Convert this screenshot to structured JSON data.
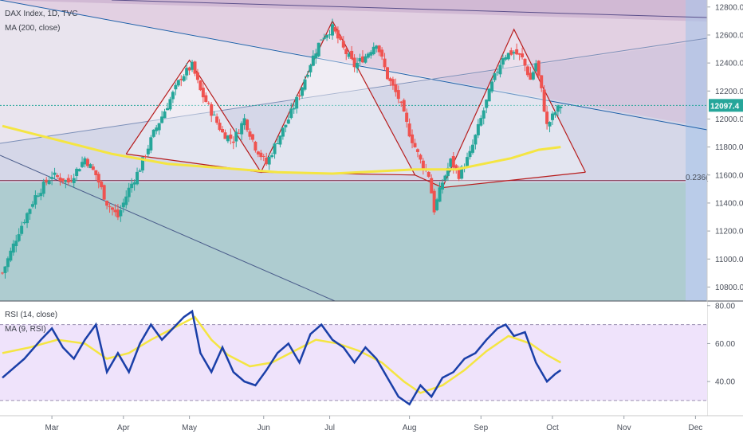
{
  "chart_data": [
    {
      "type": "candlestick",
      "title": "DAX Index, 1D, TVC",
      "indicator_label": "MA (200, close)",
      "x_ticks": [
        "Mar",
        "Apr",
        "May",
        "Jun",
        "Jul",
        "Aug",
        "Sep",
        "Oct",
        "Nov",
        "Dec"
      ],
      "y_ticks": [
        "12800.00",
        "12600.00",
        "12400.00",
        "12200.00",
        "12000.00",
        "11800.00",
        "11600.00",
        "11400.00",
        "11200.00",
        "11000.00",
        "10800.00"
      ],
      "ylim": [
        10700,
        12850
      ],
      "last_price": "12097.4",
      "fib_label": "0.236(",
      "fib_level": 11560,
      "colors": {
        "up": "#26a69a",
        "down": "#ef5350",
        "ma": "#f4e542",
        "pattern": "#b71c1c",
        "trendline": "#1e5fa8",
        "last_price": "#26a69a"
      },
      "price_path": [
        [
          0,
          10900
        ],
        [
          6,
          11200
        ],
        [
          12,
          11450
        ],
        [
          18,
          11600
        ],
        [
          24,
          11550
        ],
        [
          30,
          11720
        ],
        [
          34,
          11600
        ],
        [
          38,
          11400
        ],
        [
          42,
          11300
        ],
        [
          46,
          11500
        ],
        [
          50,
          11650
        ],
        [
          55,
          11900
        ],
        [
          60,
          12100
        ],
        [
          65,
          12300
        ],
        [
          69,
          12380
        ],
        [
          72,
          12200
        ],
        [
          76,
          12050
        ],
        [
          80,
          11900
        ],
        [
          84,
          11850
        ],
        [
          88,
          12000
        ],
        [
          92,
          11800
        ],
        [
          96,
          11680
        ],
        [
          100,
          11850
        ],
        [
          104,
          12000
        ],
        [
          108,
          12180
        ],
        [
          112,
          12400
        ],
        [
          116,
          12580
        ],
        [
          120,
          12650
        ],
        [
          124,
          12500
        ],
        [
          128,
          12380
        ],
        [
          132,
          12450
        ],
        [
          136,
          12550
        ],
        [
          140,
          12300
        ],
        [
          144,
          12150
        ],
        [
          148,
          11900
        ],
        [
          152,
          11700
        ],
        [
          155,
          11600
        ],
        [
          157,
          11350
        ],
        [
          160,
          11550
        ],
        [
          163,
          11700
        ],
        [
          166,
          11600
        ],
        [
          170,
          11750
        ],
        [
          174,
          12000
        ],
        [
          178,
          12250
        ],
        [
          182,
          12450
        ],
        [
          186,
          12480
        ],
        [
          189,
          12430
        ],
        [
          192,
          12280
        ],
        [
          194,
          12400
        ],
        [
          196,
          12200
        ],
        [
          198,
          11950
        ],
        [
          201,
          12050
        ],
        [
          203,
          12097
        ]
      ],
      "ma200": [
        [
          0,
          11950
        ],
        [
          20,
          11850
        ],
        [
          40,
          11750
        ],
        [
          60,
          11680
        ],
        [
          80,
          11650
        ],
        [
          100,
          11620
        ],
        [
          120,
          11610
        ],
        [
          140,
          11630
        ],
        [
          150,
          11640
        ],
        [
          165,
          11640
        ],
        [
          175,
          11680
        ],
        [
          185,
          11720
        ],
        [
          195,
          11780
        ],
        [
          203,
          11800
        ]
      ],
      "pattern_lines": [
        [
          [
            45,
            11750
          ],
          [
            68,
            12420
          ],
          [
            94,
            11620
          ],
          [
            120,
            12700
          ],
          [
            150,
            11600
          ],
          [
            160,
            11510
          ],
          [
            186,
            12640
          ],
          [
            212,
            11620
          ]
        ],
        [
          [
            45,
            11750
          ],
          [
            94,
            11620
          ],
          [
            150,
            11600
          ]
        ],
        [
          [
            160,
            11510
          ],
          [
            212,
            11620
          ]
        ]
      ]
    },
    {
      "type": "line",
      "title": "RSI (14, close)",
      "indicator_label": "MA (9, RSI)",
      "y_ticks": [
        "80.00",
        "60.00",
        "40.00"
      ],
      "ylim": [
        22,
        82
      ],
      "bands": [
        70,
        30
      ],
      "colors": {
        "rsi": "#1a3fa8",
        "ma": "#f4e542",
        "band_fill": "#efe3fb"
      },
      "rsi": [
        [
          0,
          42
        ],
        [
          8,
          52
        ],
        [
          14,
          62
        ],
        [
          18,
          68
        ],
        [
          22,
          58
        ],
        [
          26,
          52
        ],
        [
          30,
          62
        ],
        [
          34,
          70
        ],
        [
          38,
          45
        ],
        [
          42,
          55
        ],
        [
          46,
          45
        ],
        [
          50,
          60
        ],
        [
          54,
          70
        ],
        [
          58,
          62
        ],
        [
          62,
          68
        ],
        [
          66,
          74
        ],
        [
          69,
          77
        ],
        [
          72,
          55
        ],
        [
          76,
          45
        ],
        [
          80,
          58
        ],
        [
          84,
          45
        ],
        [
          88,
          40
        ],
        [
          92,
          38
        ],
        [
          96,
          46
        ],
        [
          100,
          55
        ],
        [
          104,
          60
        ],
        [
          108,
          50
        ],
        [
          112,
          65
        ],
        [
          116,
          70
        ],
        [
          120,
          62
        ],
        [
          124,
          58
        ],
        [
          128,
          50
        ],
        [
          132,
          58
        ],
        [
          136,
          52
        ],
        [
          140,
          42
        ],
        [
          144,
          32
        ],
        [
          148,
          28
        ],
        [
          152,
          38
        ],
        [
          156,
          32
        ],
        [
          160,
          42
        ],
        [
          164,
          45
        ],
        [
          168,
          52
        ],
        [
          172,
          55
        ],
        [
          176,
          62
        ],
        [
          180,
          68
        ],
        [
          183,
          70
        ],
        [
          186,
          64
        ],
        [
          190,
          66
        ],
        [
          194,
          50
        ],
        [
          198,
          40
        ],
        [
          201,
          44
        ],
        [
          203,
          46
        ]
      ],
      "rsi_ma": [
        [
          0,
          55
        ],
        [
          10,
          58
        ],
        [
          20,
          62
        ],
        [
          30,
          60
        ],
        [
          38,
          52
        ],
        [
          46,
          55
        ],
        [
          54,
          62
        ],
        [
          62,
          68
        ],
        [
          70,
          74
        ],
        [
          76,
          62
        ],
        [
          82,
          54
        ],
        [
          90,
          48
        ],
        [
          98,
          50
        ],
        [
          106,
          56
        ],
        [
          114,
          62
        ],
        [
          122,
          60
        ],
        [
          130,
          56
        ],
        [
          138,
          50
        ],
        [
          146,
          40
        ],
        [
          152,
          34
        ],
        [
          160,
          38
        ],
        [
          168,
          46
        ],
        [
          176,
          56
        ],
        [
          184,
          64
        ],
        [
          192,
          60
        ],
        [
          198,
          54
        ],
        [
          203,
          50
        ]
      ]
    }
  ]
}
